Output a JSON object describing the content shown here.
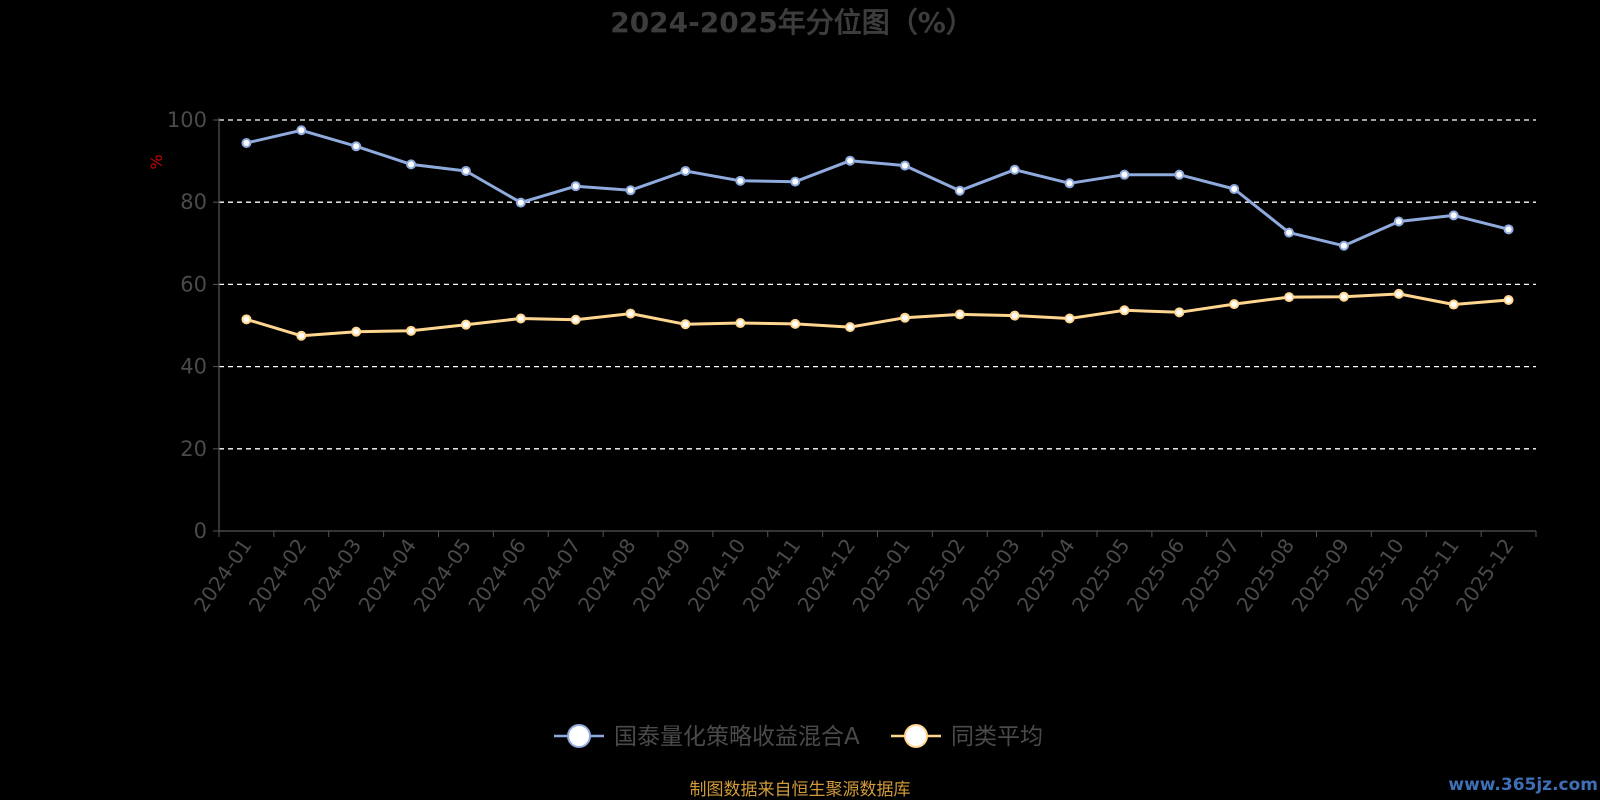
{
  "chart_data": {
    "type": "line",
    "title": "2024-2025年分位图（%）",
    "ylabel": "%",
    "ylim": [
      0,
      100
    ],
    "yticks": [
      0,
      20,
      40,
      60,
      80,
      100
    ],
    "grid": true,
    "legend_position": "bottom",
    "categories": [
      "2024-01",
      "2024-02",
      "2024-03",
      "2024-04",
      "2024-05",
      "2024-06",
      "2024-07",
      "2024-08",
      "2024-09",
      "2024-10",
      "2024-11",
      "2024-12",
      "2025-01",
      "2025-02",
      "2025-03",
      "2025-04",
      "2025-05",
      "2025-06",
      "2025-07",
      "2025-08",
      "2025-09",
      "2025-10",
      "2025-11",
      "2025-12"
    ],
    "series": [
      {
        "name": "国泰量化策略收益混合A",
        "color": "#8faadc",
        "values": [
          94.4,
          97.5,
          93.6,
          89.2,
          87.6,
          79.9,
          83.9,
          82.9,
          87.6,
          85.2,
          85.0,
          90.1,
          88.9,
          82.8,
          87.9,
          84.6,
          86.7,
          86.7,
          83.2,
          72.6,
          69.4,
          75.3,
          76.8,
          73.4
        ]
      },
      {
        "name": "同类平均",
        "color": "#ffd68f",
        "values": [
          51.5,
          47.5,
          48.5,
          48.7,
          50.2,
          51.7,
          51.4,
          52.9,
          50.3,
          50.6,
          50.4,
          49.6,
          51.9,
          52.7,
          52.4,
          51.7,
          53.7,
          53.2,
          55.2,
          56.9,
          57.0,
          57.7,
          55.1,
          56.2
        ]
      }
    ]
  },
  "footer": {
    "source": "制图数据来自恒生聚源数据库",
    "watermark": "www.365jz.com"
  }
}
